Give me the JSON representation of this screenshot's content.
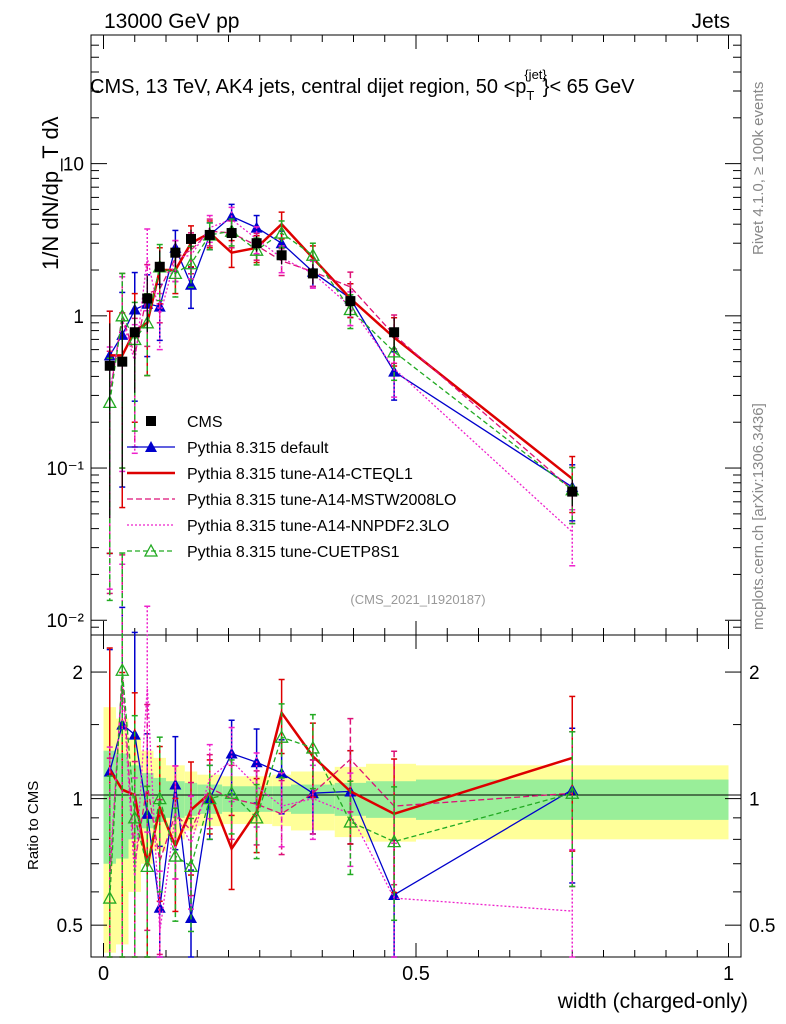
{
  "header": {
    "left": "13000 GeV pp",
    "right": "Jets"
  },
  "side_labels": {
    "rivet": "Rivet 4.1.0, ≥ 100k events",
    "source": "mcplots.cern.ch [arXiv:1306.3436]"
  },
  "main": {
    "title_pre": "CMS, 13 TeV, AK4 jets, central dijet region, 50 <p",
    "title_sub": "T",
    "title_sup": "{jet}",
    "title_post": "}< 65 GeV",
    "ylabel": "1/N dN/dp_T dλ",
    "analysis_tag": "(CMS_2021_I1920187)",
    "y_tick_labels": [
      "10⁻²",
      "10⁻¹",
      "1",
      "10"
    ]
  },
  "ratio": {
    "ylabel": "Ratio to CMS",
    "y_tick_labels": [
      "0.5",
      "1",
      "2"
    ]
  },
  "xaxis": {
    "label": "width (charged-only)",
    "tick_labels": [
      "0",
      "0.5",
      "1"
    ]
  },
  "legend": [
    {
      "label": "CMS",
      "color": "#000000",
      "marker": "square",
      "dash": ""
    },
    {
      "label": "Pythia 8.315 default",
      "color": "#0000cc",
      "marker": "triangle",
      "dash": ""
    },
    {
      "label": "Pythia 8.315 tune-A14-CTEQL1",
      "color": "#dd0000",
      "marker": "none",
      "dash": ""
    },
    {
      "label": "Pythia 8.315 tune-A14-MSTW2008LO",
      "color": "#dd1177",
      "marker": "none",
      "dash": "6,3"
    },
    {
      "label": "Pythia 8.315 tune-A14-NNPDF2.3LO",
      "color": "#ee22cc",
      "marker": "none",
      "dash": "2,2"
    },
    {
      "label": "Pythia 8.315 tune-CUETP8S1",
      "color": "#22aa22",
      "marker": "open-triangle",
      "dash": "5,3"
    }
  ],
  "chart_data": {
    "type": "scatter",
    "title": "CMS, 13 TeV, AK4 jets, central dijet region, 50 < pT jet < 65 GeV",
    "xlabel": "width (charged-only)",
    "ylabel": "1/N dN/dpT dλ",
    "xlim": [
      -0.02,
      1.02
    ],
    "ylim": [
      0.008,
      70
    ],
    "yscale": "log",
    "ratio_ylim": [
      0.42,
      2.45
    ],
    "x": [
      0.01,
      0.03,
      0.05,
      0.07,
      0.09,
      0.115,
      0.14,
      0.17,
      0.205,
      0.245,
      0.285,
      0.335,
      0.395,
      0.465,
      0.75
    ],
    "data": {
      "name": "CMS",
      "values": [
        0.47,
        0.5,
        0.78,
        1.3,
        2.1,
        2.6,
        3.2,
        3.4,
        3.5,
        3.0,
        2.5,
        1.9,
        1.25,
        0.78,
        0.07
      ],
      "rel_err": [
        0.9,
        0.85,
        0.6,
        0.4,
        0.28,
        0.2,
        0.15,
        0.12,
        0.12,
        0.12,
        0.13,
        0.15,
        0.2,
        0.25,
        0.2
      ]
    },
    "series": [
      {
        "name": "Pythia 8.315 default",
        "values": [
          0.55,
          0.75,
          1.1,
          1.2,
          1.15,
          2.8,
          1.6,
          3.4,
          4.5,
          3.8,
          3.0,
          1.95,
          1.3,
          0.43,
          0.075
        ],
        "ratio": [
          1.16,
          1.5,
          1.42,
          0.92,
          0.55,
          1.08,
          0.52,
          1.0,
          1.28,
          1.22,
          1.15,
          1.03,
          1.04,
          0.59,
          1.05
        ]
      },
      {
        "name": "Pythia 8.315 tune-A14-CTEQL1",
        "values": [
          0.55,
          0.55,
          0.8,
          0.9,
          2.0,
          2.0,
          3.0,
          3.5,
          2.6,
          2.8,
          4.0,
          2.4,
          1.3,
          0.72,
          0.085
        ],
        "ratio": [
          1.17,
          1.05,
          1.02,
          0.69,
          0.95,
          0.77,
          0.94,
          1.03,
          0.76,
          0.93,
          1.6,
          1.26,
          1.04,
          0.92,
          1.25
        ]
      },
      {
        "name": "Pythia 8.315 tune-A14-MSTW2008LO",
        "values": [
          0.3,
          1.0,
          0.55,
          1.4,
          1.5,
          2.4,
          2.7,
          3.6,
          3.5,
          2.9,
          2.3,
          1.95,
          1.55,
          0.75,
          0.072
        ],
        "ratio": [
          0.64,
          2.0,
          0.7,
          1.08,
          0.71,
          0.92,
          0.84,
          1.06,
          1.0,
          0.97,
          0.92,
          1.03,
          1.24,
          0.96,
          1.03
        ]
      },
      {
        "name": "Pythia 8.315 tune-A14-NNPDF2.3LO",
        "values": [
          0.32,
          0.95,
          0.5,
          2.4,
          1.0,
          2.4,
          2.5,
          3.8,
          4.3,
          3.2,
          2.4,
          1.9,
          1.15,
          0.45,
          0.038
        ],
        "ratio": [
          0.68,
          1.9,
          0.64,
          1.85,
          0.48,
          0.92,
          0.78,
          1.12,
          1.23,
          1.07,
          0.96,
          1.0,
          0.92,
          0.58,
          0.54
        ]
      },
      {
        "name": "Pythia 8.315 tune-CUETP8S1",
        "values": [
          0.27,
          1.0,
          0.7,
          0.9,
          2.1,
          1.9,
          2.2,
          3.4,
          3.6,
          2.7,
          3.5,
          2.5,
          1.1,
          0.58,
          0.072
        ],
        "ratio": [
          0.58,
          2.02,
          0.9,
          0.69,
          1.0,
          0.73,
          0.69,
          1.0,
          1.03,
          0.9,
          1.4,
          1.32,
          0.88,
          0.79,
          1.03
        ]
      }
    ],
    "uncertainty_bands": {
      "x_edges": [
        0.0,
        0.02,
        0.04,
        0.06,
        0.08,
        0.1,
        0.13,
        0.15,
        0.19,
        0.22,
        0.27,
        0.3,
        0.37,
        0.42,
        0.5,
        1.0
      ],
      "inner_half_width": [
        0.3,
        0.28,
        0.2,
        0.15,
        0.12,
        0.1,
        0.09,
        0.08,
        0.07,
        0.07,
        0.07,
        0.08,
        0.09,
        0.1,
        0.11
      ],
      "outer_half_width": [
        0.65,
        0.55,
        0.4,
        0.3,
        0.25,
        0.2,
        0.16,
        0.14,
        0.13,
        0.13,
        0.14,
        0.16,
        0.19,
        0.21,
        0.2
      ]
    }
  }
}
